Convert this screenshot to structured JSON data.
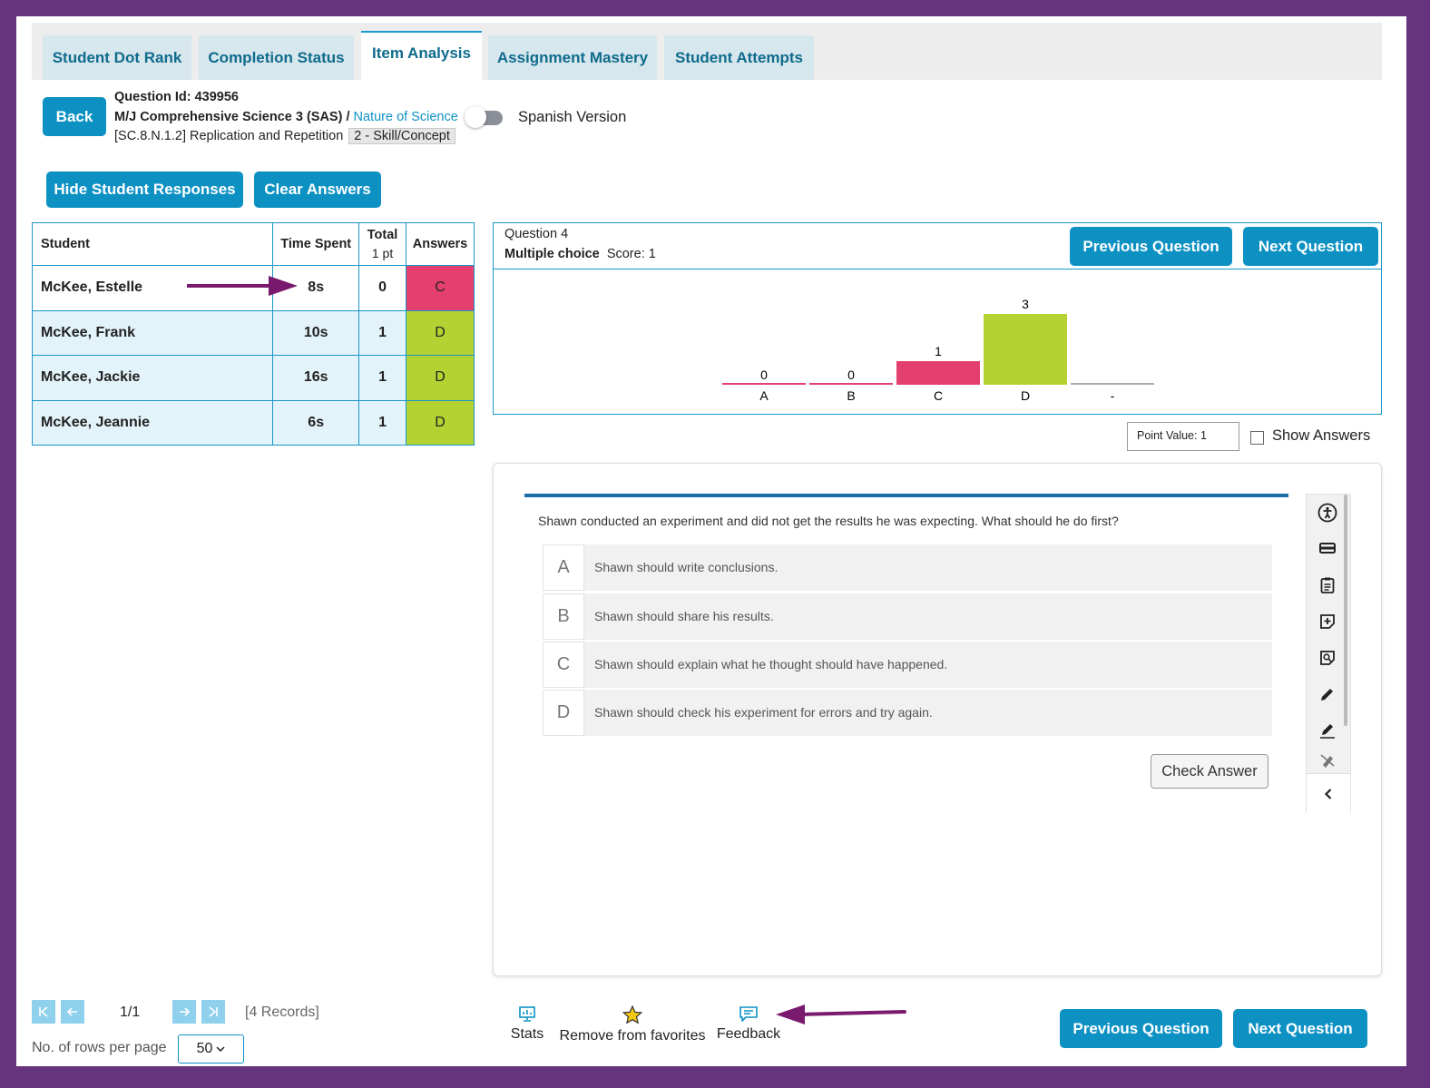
{
  "tabs": [
    {
      "label": "Student Dot Rank"
    },
    {
      "label": "Completion Status"
    },
    {
      "label": "Item Analysis"
    },
    {
      "label": "Assignment Mastery"
    },
    {
      "label": "Student Attempts"
    }
  ],
  "header": {
    "back_label": "Back",
    "question_id_label": "Question Id: 439956",
    "course": "M/J Comprehensive Science 3 (SAS) /",
    "course_link": "Nature of Science",
    "standard": "[SC.8.N.1.2] Replication and Repetition",
    "skill_tag": "2 - Skill/Concept",
    "spanish_label": "Spanish Version",
    "hide_responses_label": "Hide Student Responses",
    "clear_answers_label": "Clear Answers"
  },
  "table": {
    "headers": {
      "student": "Student",
      "time": "Time Spent",
      "total": "Total",
      "total_sub": "1 pt",
      "answers": "Answers"
    },
    "rows": [
      {
        "name": "McKee, Estelle",
        "time": "8s",
        "total": "0",
        "answer": "C"
      },
      {
        "name": "McKee, Frank",
        "time": "10s",
        "total": "1",
        "answer": "D"
      },
      {
        "name": "McKee, Jackie",
        "time": "16s",
        "total": "1",
        "answer": "D"
      },
      {
        "name": "McKee, Jeannie",
        "time": "6s",
        "total": "1",
        "answer": "D"
      }
    ]
  },
  "question_panel": {
    "question_label": "Question 4",
    "type_label": "Multiple choice",
    "score_label": "Score: 1",
    "prev_label": "Previous Question",
    "next_label": "Next Question",
    "point_value_label": "Point Value: 1",
    "show_answers_label": "Show Answers"
  },
  "chart_data": {
    "type": "bar",
    "categories": [
      "A",
      "B",
      "C",
      "D",
      "-"
    ],
    "values": [
      0,
      0,
      1,
      3,
      null
    ],
    "data_labels": [
      "0",
      "0",
      "1",
      "3",
      ""
    ],
    "colors": [
      "#e4406f",
      "#e4406f",
      "#e4406f",
      "#b5d233",
      "#aaaaaa"
    ],
    "ylim": [
      0,
      3
    ]
  },
  "question": {
    "prompt": "Shawn conducted an experiment and did not get the results he was expecting. What should he do first?",
    "options": [
      {
        "letter": "A",
        "text": "Shawn should write conclusions."
      },
      {
        "letter": "B",
        "text": "Shawn should share his results."
      },
      {
        "letter": "C",
        "text": "Shawn should explain what he thought should have happened."
      },
      {
        "letter": "D",
        "text": "Shawn should check his experiment for errors and try again."
      }
    ],
    "check_label": "Check Answer"
  },
  "toolbar_icons": [
    "accessibility-icon",
    "line-reader-icon",
    "notepad-icon",
    "sticky-note-add-icon",
    "sticky-note-view-icon",
    "pencil-icon",
    "highlighter-icon",
    "eraser-icon",
    "collapse-chevron-icon"
  ],
  "pager": {
    "page": "1/1",
    "records": "[4 Records]",
    "rows_label": "No. of rows per page",
    "rows_value": "50"
  },
  "footer": {
    "stats_label": "Stats",
    "favorites_label": "Remove from favorites",
    "feedback_label": "Feedback",
    "prev_label": "Previous Question",
    "next_label": "Next Question"
  },
  "colors": {
    "brand": "#0d91c3",
    "wrong": "#e4406f",
    "correct": "#b5d233",
    "annotation_arrow": "#7a1a6e"
  }
}
